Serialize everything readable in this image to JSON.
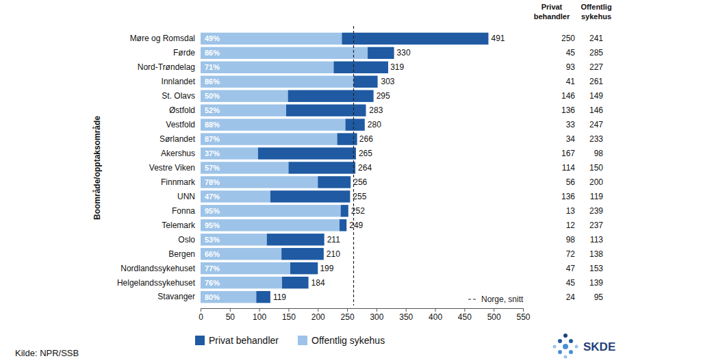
{
  "chart_data": {
    "type": "bar",
    "orientation": "horizontal",
    "stacked": true,
    "data_labels": true,
    "grid": false,
    "y_label": "Boområde/opptaksområde",
    "categories": [
      "Møre og Romsdal",
      "Førde",
      "Nord-Trøndelag",
      "Innlandet",
      "St. Olavs",
      "Østfold",
      "Vestfold",
      "Sørlandet",
      "Akershus",
      "Vestre Viken",
      "Finnmark",
      "UNN",
      "Fonna",
      "Telemark",
      "Oslo",
      "Bergen",
      "Nordlandssykehuset",
      "Helgelandssykehuset",
      "Stavanger"
    ],
    "series": [
      {
        "name": "Privat behandler",
        "color": "#1f5aa3",
        "values": [
          250,
          45,
          93,
          41,
          146,
          136,
          33,
          34,
          167,
          114,
          56,
          136,
          13,
          12,
          98,
          72,
          47,
          45,
          24
        ]
      },
      {
        "name": "Offentlig sykehus",
        "color": "#9dc3e8",
        "values": [
          241,
          285,
          227,
          261,
          149,
          146,
          247,
          233,
          98,
          150,
          200,
          119,
          239,
          237,
          113,
          138,
          153,
          139,
          95
        ]
      }
    ],
    "totals": [
      491,
      330,
      319,
      303,
      295,
      283,
      280,
      266,
      265,
      264,
      256,
      255,
      252,
      249,
      211,
      210,
      199,
      184,
      119
    ],
    "shares": [
      49,
      86,
      71,
      86,
      50,
      52,
      88,
      87,
      37,
      57,
      78,
      47,
      95,
      95,
      53,
      66,
      77,
      76,
      80
    ],
    "share_labels": [
      "49%",
      "86%",
      "71%",
      "86%",
      "50%",
      "52%",
      "88%",
      "87%",
      "37%",
      "57%",
      "78%",
      "47%",
      "95%",
      "95%",
      "53%",
      "66%",
      "77%",
      "76%",
      "80%"
    ],
    "xlim": [
      0,
      550
    ],
    "xticks": [
      0,
      50,
      100,
      150,
      200,
      250,
      300,
      350,
      400,
      450,
      500,
      550
    ],
    "reference_line": {
      "value": 261,
      "label": "Norge, snitt"
    },
    "source": "Kilde: NPR/SSB",
    "logo_text": "SKDE"
  }
}
